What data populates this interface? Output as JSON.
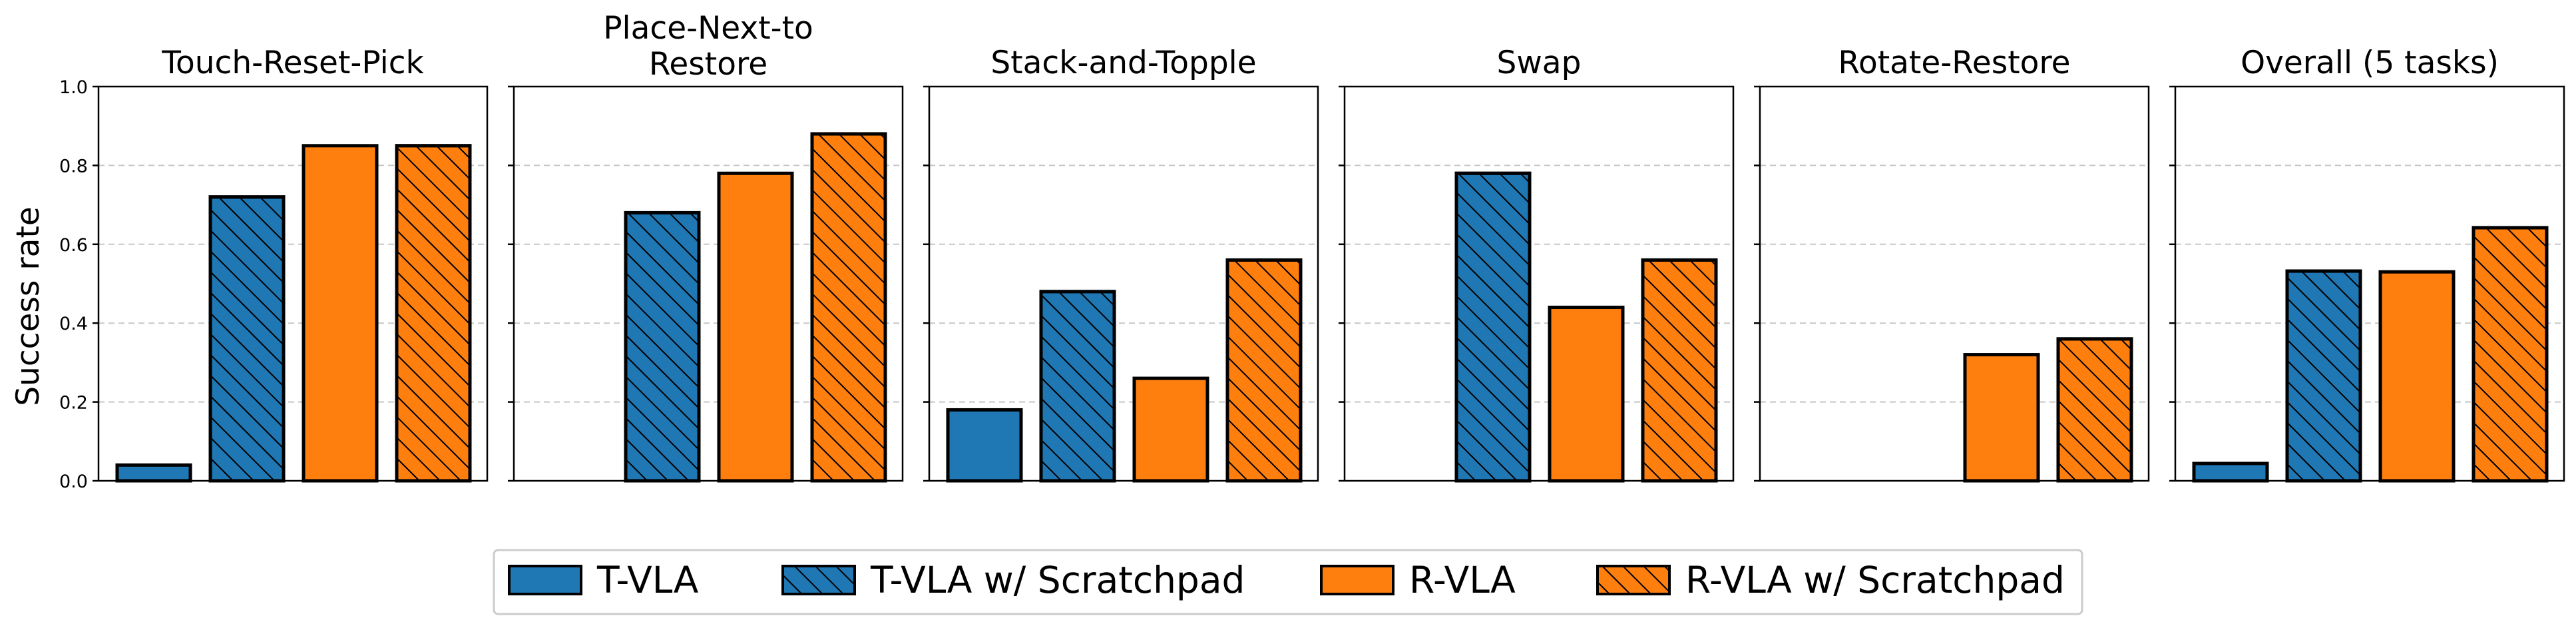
{
  "chart_data": {
    "type": "bar",
    "ylabel": "Success rate",
    "ylim": [
      0,
      1.0
    ],
    "yticks": [
      "0.0",
      "0.2",
      "0.4",
      "0.6",
      "0.8",
      "1.0"
    ],
    "grid": "y-dashed",
    "legend_position": "bottom-center",
    "series": [
      {
        "name": "T-VLA",
        "color": "#1f77b4",
        "hatch": false
      },
      {
        "name": "T-VLA w/ Scratchpad",
        "color": "#1f77b4",
        "hatch": true
      },
      {
        "name": "R-VLA",
        "color": "#ff7f0e",
        "hatch": false
      },
      {
        "name": "R-VLA w/ Scratchpad",
        "color": "#ff7f0e",
        "hatch": true
      }
    ],
    "panels": [
      {
        "title": [
          "Touch-Reset-Pick"
        ],
        "values": [
          0.04,
          0.72,
          0.85,
          0.85
        ]
      },
      {
        "title": [
          "Place-Next-to",
          "Restore"
        ],
        "values": [
          0.0,
          0.68,
          0.78,
          0.88
        ]
      },
      {
        "title": [
          "Stack-and-Topple"
        ],
        "values": [
          0.18,
          0.48,
          0.26,
          0.56
        ]
      },
      {
        "title": [
          "Swap"
        ],
        "values": [
          0.0,
          0.78,
          0.44,
          0.56
        ]
      },
      {
        "title": [
          "Rotate-Restore"
        ],
        "values": [
          0.0,
          0.0,
          0.32,
          0.36
        ]
      },
      {
        "title": [
          "Overall (5 tasks)"
        ],
        "values": [
          0.044,
          0.532,
          0.53,
          0.642
        ]
      }
    ]
  }
}
